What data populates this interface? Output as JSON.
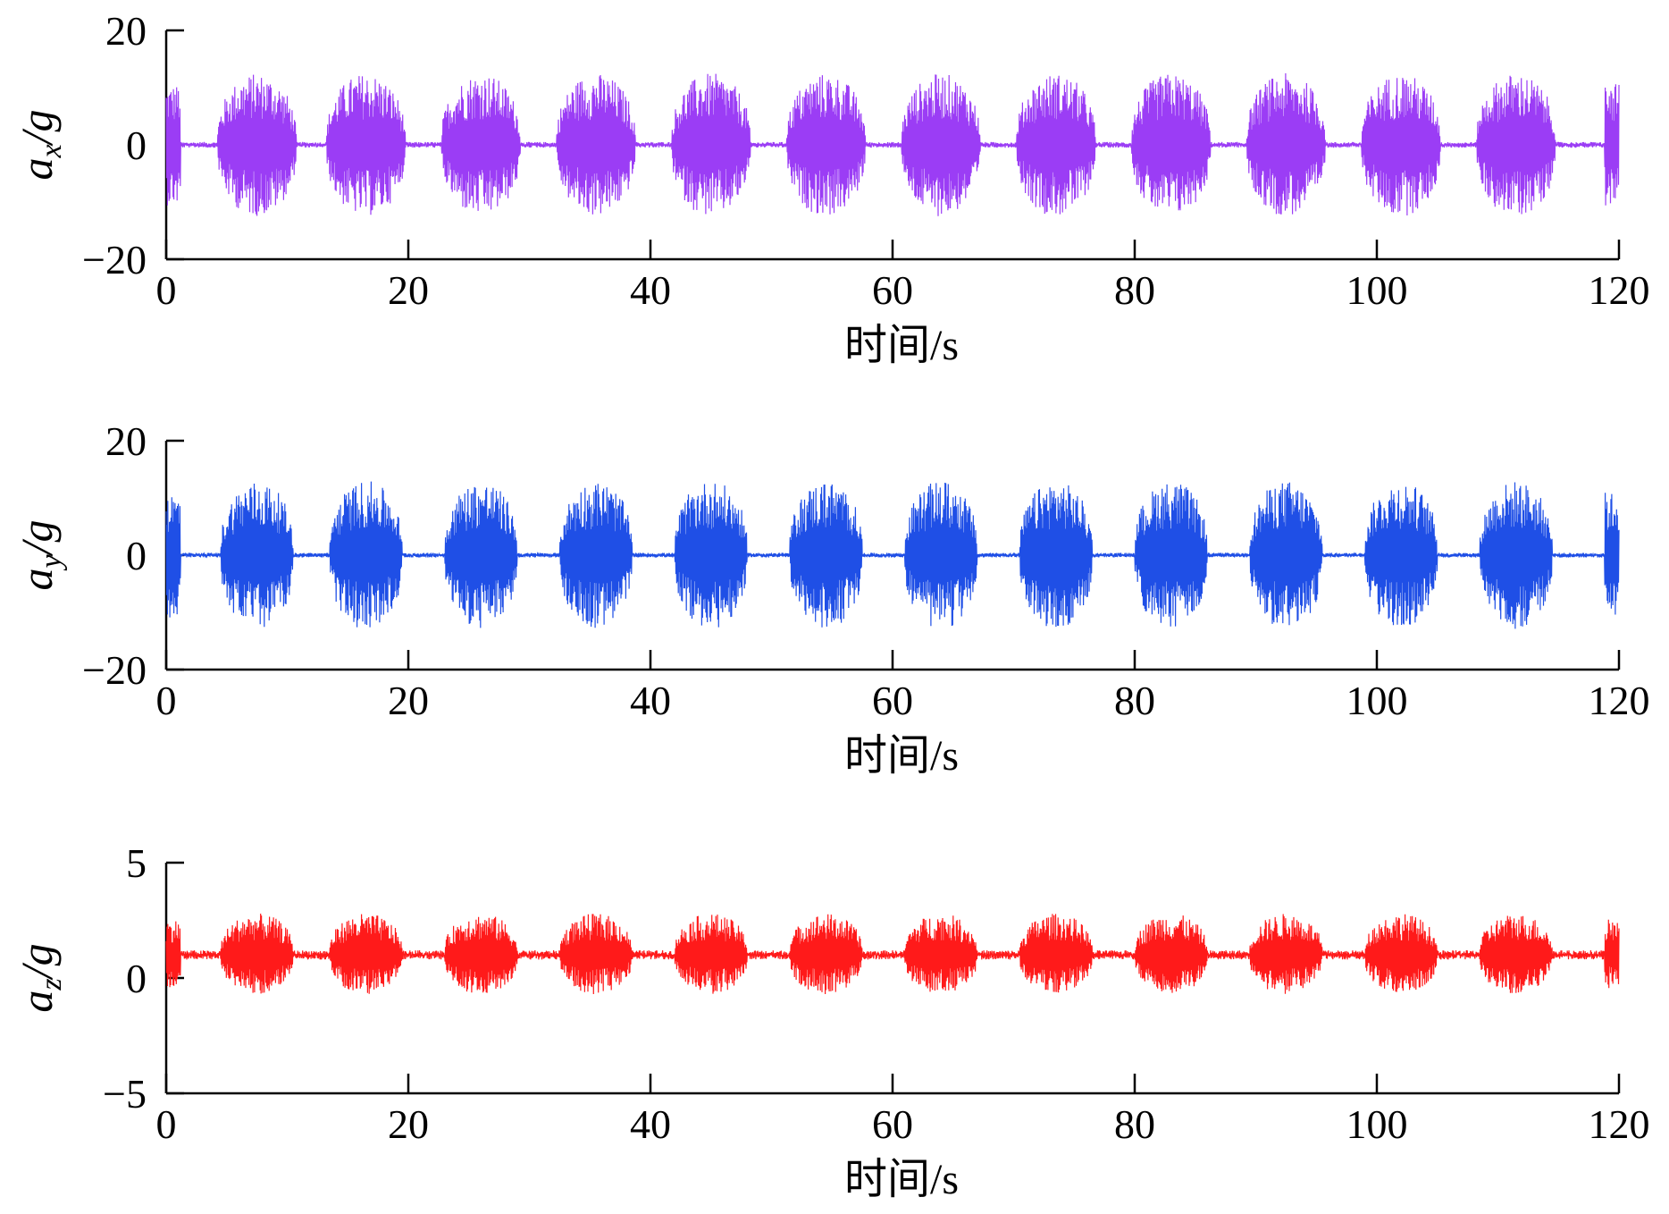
{
  "chart_data": [
    {
      "type": "line",
      "ylabel": {
        "base": "a",
        "sub": "x",
        "suffix": "/g"
      },
      "xlabel": "时间/s",
      "xlim": [
        0,
        120
      ],
      "ylim": [
        -20,
        20
      ],
      "xticks": [
        "0",
        "20",
        "40",
        "60",
        "80",
        "100",
        "120"
      ],
      "yticks": [
        "20",
        "0",
        "−20"
      ],
      "color": "#9b3df5",
      "series": [
        {
          "baseline": 0,
          "burst_centers_s": [
            7.5,
            16.5,
            26.0,
            35.5,
            45.0,
            54.5,
            64.0,
            73.5,
            83.0,
            92.5,
            102.0,
            111.5
          ],
          "burst_width_s": 6.5,
          "burst_peak": 12.5,
          "burst_min": -12.5,
          "quiet_amplitude": 0.5
        }
      ]
    },
    {
      "type": "line",
      "ylabel": {
        "base": "a",
        "sub": "y",
        "suffix": "/g"
      },
      "xlabel": "时间/s",
      "xlim": [
        0,
        120
      ],
      "ylim": [
        -20,
        20
      ],
      "xticks": [
        "0",
        "20",
        "40",
        "60",
        "80",
        "100",
        "120"
      ],
      "yticks": [
        "20",
        "0",
        "−20"
      ],
      "color": "#1f4fe6",
      "series": [
        {
          "baseline": 0,
          "burst_centers_s": [
            7.5,
            16.5,
            26.0,
            35.5,
            45.0,
            54.5,
            64.0,
            73.5,
            83.0,
            92.5,
            102.0,
            111.5
          ],
          "burst_width_s": 6.0,
          "burst_peak": 13,
          "burst_min": -13,
          "quiet_amplitude": 0.4
        }
      ]
    },
    {
      "type": "line",
      "ylabel": {
        "base": "a",
        "sub": "z",
        "suffix": "/g"
      },
      "xlabel": "时间/s",
      "xlim": [
        0,
        120
      ],
      "ylim": [
        -5,
        5
      ],
      "xticks": [
        "0",
        "20",
        "40",
        "60",
        "80",
        "100",
        "120"
      ],
      "yticks": [
        "5",
        "0",
        "−5"
      ],
      "color": "#ff1a1a",
      "series": [
        {
          "baseline": 1,
          "burst_centers_s": [
            7.5,
            16.5,
            26.0,
            35.5,
            45.0,
            54.5,
            64.0,
            73.5,
            83.0,
            92.5,
            102.0,
            111.5
          ],
          "burst_width_s": 6.0,
          "burst_peak": 2.8,
          "burst_min": -0.7,
          "quiet_amplitude": 0.2
        }
      ]
    }
  ]
}
